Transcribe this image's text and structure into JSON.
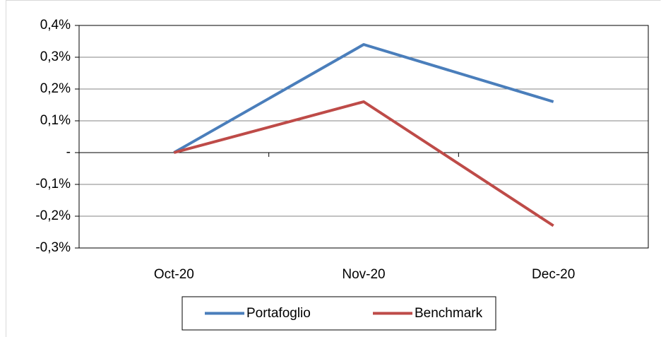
{
  "chart_data": {
    "type": "line",
    "categories": [
      "Oct-20",
      "Nov-20",
      "Dec-20"
    ],
    "series": [
      {
        "name": "Portafoglio",
        "color": "#4a7ebb",
        "values": [
          0,
          0.34,
          0.16
        ]
      },
      {
        "name": "Benchmark",
        "color": "#be4b48",
        "values": [
          0,
          0.16,
          -0.23
        ]
      }
    ],
    "ylim": [
      -0.3,
      0.4
    ],
    "yticks": [
      {
        "value": -0.3,
        "label": "-0,3%"
      },
      {
        "value": -0.2,
        "label": "-0,2%"
      },
      {
        "value": -0.1,
        "label": "-0,1%"
      },
      {
        "value": 0,
        "label": "-"
      },
      {
        "value": 0.1,
        "label": "0,1%"
      },
      {
        "value": 0.2,
        "label": "0,2%"
      },
      {
        "value": 0.3,
        "label": "0,3%"
      },
      {
        "value": 0.4,
        "label": "0,4%"
      }
    ],
    "grid": true,
    "legend": "bottom"
  }
}
